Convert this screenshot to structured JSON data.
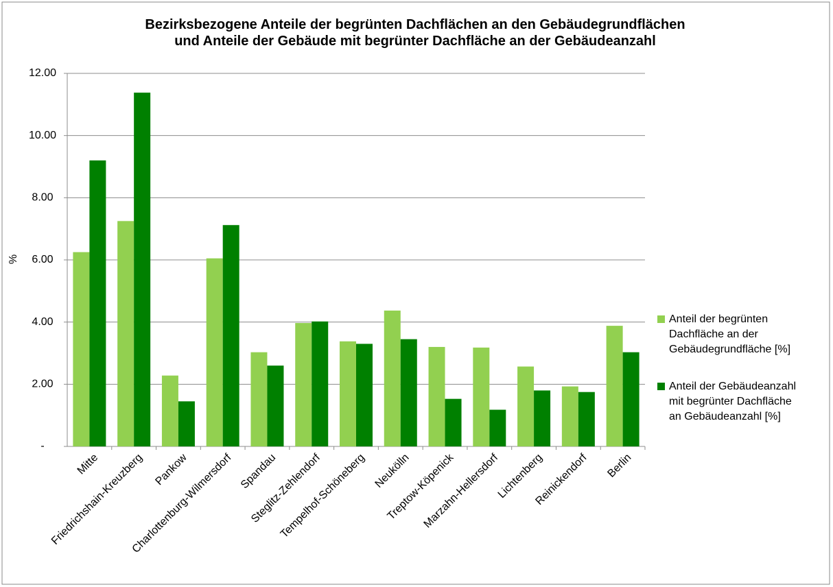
{
  "chart_data": {
    "type": "bar",
    "title": "Bezirksbezogene Anteile der begrünten Dachflächen an den Gebäudegrundflächen und Anteile der Gebäude mit begrünter Dachfläche an der Gebäudeanzahl",
    "y_label": "%",
    "categories": [
      "Mitte",
      "Friedrichshain-Kreuzberg",
      "Pankow",
      "Charlottenburg-Wilmersdorf",
      "Spandau",
      "Steglitz-Zehlendorf",
      "Tempelhof-Schöneberg",
      "Neukölln",
      "Treptow-Köpenick",
      "Marzahn-Hellersdorf",
      "Lichtenberg",
      "Reinickendorf",
      "Berlin"
    ],
    "series": [
      {
        "name": "Anteil der begrünten Dachfläche an der Gebäudegrundfläche [%]",
        "color": "#92d050",
        "values": [
          6.25,
          7.25,
          2.28,
          6.05,
          3.03,
          3.97,
          3.38,
          4.37,
          3.2,
          3.18,
          2.57,
          1.93,
          3.88
        ]
      },
      {
        "name": "Anteil der Gebäudeanzahl mit begrünter Dachfläche an Gebäudeanzahl [%]",
        "color": "#008000",
        "values": [
          9.2,
          11.38,
          1.45,
          7.12,
          2.6,
          4.02,
          3.3,
          3.45,
          1.53,
          1.18,
          1.8,
          1.75,
          3.03
        ]
      }
    ],
    "ylim": [
      0,
      12
    ],
    "yticks": [
      {
        "value": 0,
        "label": "-"
      },
      {
        "value": 2,
        "label": "2.00"
      },
      {
        "value": 4,
        "label": "4.00"
      },
      {
        "value": 6,
        "label": "6.00"
      },
      {
        "value": 8,
        "label": "8.00"
      },
      {
        "value": 10,
        "label": "10.00"
      },
      {
        "value": 12,
        "label": "12.00"
      }
    ],
    "grid": true,
    "legend": "right"
  }
}
